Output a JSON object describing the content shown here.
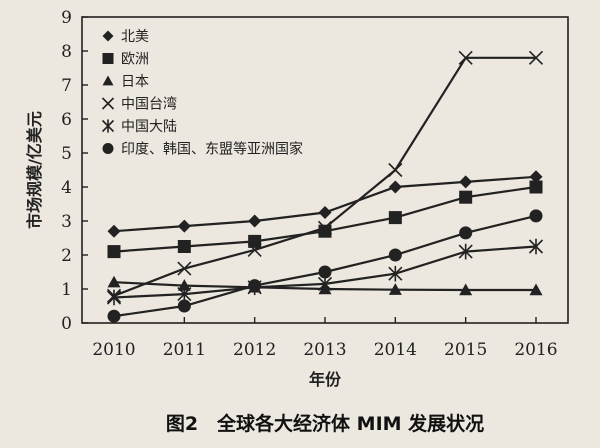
{
  "chart_data": {
    "type": "line",
    "x": [
      "2010",
      "2011",
      "2012",
      "2013",
      "2014",
      "2015",
      "2016"
    ],
    "ylim": [
      0,
      9
    ],
    "yticks": [
      0,
      1,
      2,
      3,
      4,
      5,
      6,
      7,
      8,
      9
    ],
    "xlabel": "年份",
    "ylabel": "市场规模/亿美元",
    "caption": "图2　全球各大经济体 MIM 发展状况",
    "grid": false,
    "legend": "top-left",
    "series": [
      {
        "name": "北美",
        "marker": "diamond",
        "values": [
          2.7,
          2.85,
          3.0,
          3.25,
          4.0,
          4.15,
          4.3
        ]
      },
      {
        "name": "欧洲",
        "marker": "square",
        "values": [
          2.1,
          2.25,
          2.4,
          2.7,
          3.1,
          3.7,
          4.0
        ]
      },
      {
        "name": "日本",
        "marker": "triangle",
        "values": [
          1.2,
          1.1,
          1.05,
          1.0,
          0.98,
          0.97,
          0.97
        ]
      },
      {
        "name": "中国台湾",
        "marker": "x",
        "values": [
          0.8,
          1.6,
          2.15,
          2.8,
          4.5,
          7.8,
          7.8
        ]
      },
      {
        "name": "中国大陆",
        "marker": "asterisk",
        "values": [
          0.75,
          0.85,
          1.05,
          1.15,
          1.45,
          2.1,
          2.25
        ]
      },
      {
        "name": "印度、韩国、东盟等亚洲国家",
        "marker": "circle",
        "values": [
          0.2,
          0.5,
          1.1,
          1.5,
          2.0,
          2.65,
          3.15
        ]
      }
    ]
  }
}
